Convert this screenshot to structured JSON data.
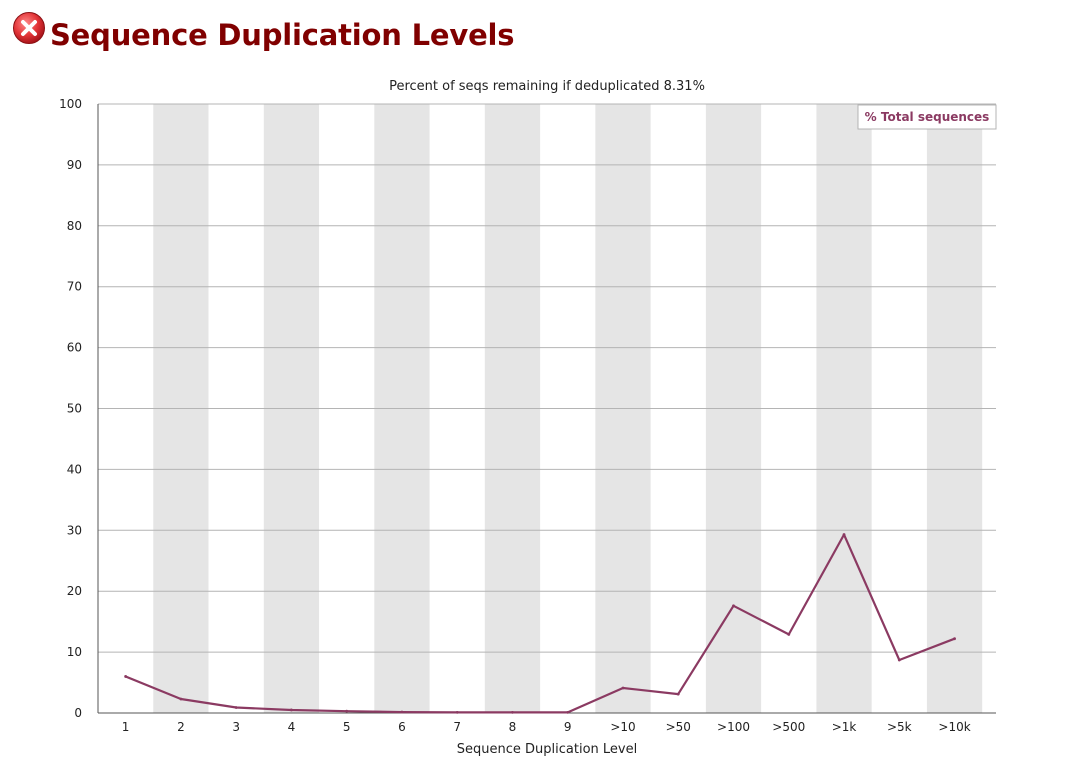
{
  "header": {
    "title": "Sequence Duplication Levels",
    "status_icon": "error-icon",
    "status_color": "#e23437"
  },
  "chart_data": {
    "type": "line",
    "title": "Percent of seqs remaining if deduplicated 8.31%",
    "xlabel": "Sequence Duplication Level",
    "ylabel": "",
    "categories": [
      "1",
      "2",
      "3",
      "4",
      "5",
      "6",
      "7",
      "8",
      "9",
      ">10",
      ">50",
      ">100",
      ">500",
      ">1k",
      ">5k",
      ">10k"
    ],
    "series": [
      {
        "name": "% Total sequences",
        "color": "#8b3a62",
        "values": [
          6.0,
          2.3,
          0.9,
          0.5,
          0.3,
          0.15,
          0.1,
          0.1,
          0.1,
          4.1,
          3.1,
          17.6,
          12.9,
          29.3,
          8.7,
          12.2
        ]
      }
    ],
    "ylim": [
      0,
      100
    ],
    "yticks": [
      0,
      10,
      20,
      30,
      40,
      50,
      60,
      70,
      80,
      90,
      100
    ],
    "grid": true,
    "legend": "top-right",
    "band_color": "#e5e5e5"
  }
}
